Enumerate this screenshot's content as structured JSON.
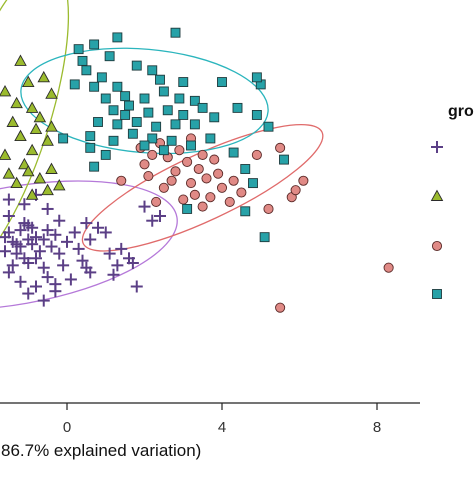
{
  "chart_data": {
    "type": "scatter",
    "title": "",
    "xlabel": "86.7% explained variation)",
    "ylabel": "",
    "xlim": [
      -1.7,
      9.2
    ],
    "ylim": [
      -4.8,
      8.3
    ],
    "x_ticks": [
      0,
      4,
      8
    ],
    "x_tick_labels": [
      "0",
      "4",
      "8"
    ],
    "grid": false,
    "legend": {
      "title": "gro",
      "placement": "right",
      "entries": [
        "",
        "",
        "",
        ""
      ]
    },
    "series": [
      {
        "marker": "plus",
        "color": "#5b3f86",
        "ellipse": {
          "center": [
            -1.3,
            -1.25
          ],
          "radii": [
            4.2,
            2.5
          ],
          "angle_deg": -10,
          "color": "#b579d9"
        },
        "points": [
          [
            -1.4,
            -1.1
          ],
          [
            -1.2,
            -1.3
          ],
          [
            -1.0,
            -1.0
          ],
          [
            -1.3,
            -1.6
          ],
          [
            -0.9,
            -1.2
          ],
          [
            -1.5,
            -0.7
          ],
          [
            -1.1,
            -1.8
          ],
          [
            -0.8,
            -0.9
          ],
          [
            -1.6,
            -1.5
          ],
          [
            -1.2,
            -0.6
          ],
          [
            -0.7,
            -1.5
          ],
          [
            -1.0,
            -2.0
          ],
          [
            -1.4,
            -2.1
          ],
          [
            -0.9,
            -0.5
          ],
          [
            -0.6,
            -1.0
          ],
          [
            -1.6,
            -0.9
          ],
          [
            -1.3,
            -1.2
          ],
          [
            -1.1,
            -0.3
          ],
          [
            -0.8,
            -1.8
          ],
          [
            -1.5,
            -2.4
          ],
          [
            -0.5,
            -0.6
          ],
          [
            -0.4,
            -1.3
          ],
          [
            -0.3,
            -0.8
          ],
          [
            -0.2,
            -1.6
          ],
          [
            -0.6,
            -2.2
          ],
          [
            -0.2,
            -0.2
          ],
          [
            0.0,
            -1.1
          ],
          [
            -0.1,
            -2.1
          ],
          [
            -0.5,
            -2.6
          ],
          [
            0.2,
            -0.7
          ],
          [
            0.3,
            -1.4
          ],
          [
            0.5,
            -0.3
          ],
          [
            0.6,
            -1.0
          ],
          [
            0.8,
            -0.5
          ],
          [
            0.4,
            -1.9
          ],
          [
            -0.3,
            -2.9
          ],
          [
            -0.8,
            -3.0
          ],
          [
            -1.2,
            -2.8
          ],
          [
            -1.0,
            -3.3
          ],
          [
            -0.6,
            -3.6
          ],
          [
            -0.3,
            -3.2
          ],
          [
            0.1,
            -2.7
          ],
          [
            0.6,
            -2.4
          ],
          [
            1.4,
            -1.4
          ],
          [
            1.1,
            -1.6
          ],
          [
            1.3,
            -2.1
          ],
          [
            1.7,
            -2.0
          ],
          [
            2.0,
            0.4
          ],
          [
            2.4,
            0.0
          ],
          [
            2.2,
            -0.2
          ],
          [
            1.6,
            -1.8
          ],
          [
            1.8,
            -3.0
          ],
          [
            1.2,
            -2.5
          ],
          [
            0.5,
            -2.2
          ],
          [
            -0.5,
            0.3
          ],
          [
            -1.1,
            0.5
          ],
          [
            -1.5,
            0.7
          ],
          [
            -0.8,
            0.9
          ],
          [
            -1.5,
            0.0
          ],
          [
            -1.0,
            -0.4
          ],
          [
            1.0,
            -0.7
          ]
        ]
      },
      {
        "marker": "triangle",
        "color": "#9bbb2e",
        "ellipse": {
          "center": [
            -1.7,
            4.0
          ],
          "radii": [
            4.2,
            2.0
          ],
          "angle_deg": -72,
          "color": "#9bbb2e"
        },
        "points": [
          [
            -1.6,
            5.3
          ],
          [
            -1.3,
            4.8
          ],
          [
            -1.0,
            5.7
          ],
          [
            -0.9,
            4.6
          ],
          [
            -0.6,
            5.9
          ],
          [
            -0.4,
            5.2
          ],
          [
            -0.7,
            4.2
          ],
          [
            -1.4,
            4.0
          ],
          [
            -1.2,
            3.4
          ],
          [
            -0.8,
            3.7
          ],
          [
            -0.5,
            3.2
          ],
          [
            -0.9,
            2.8
          ],
          [
            -1.1,
            2.2
          ],
          [
            -0.4,
            2.0
          ],
          [
            -0.7,
            1.6
          ],
          [
            -0.5,
            1.1
          ],
          [
            -0.9,
            0.9
          ],
          [
            -1.3,
            1.4
          ],
          [
            -1.6,
            2.6
          ],
          [
            -0.2,
            1.3
          ],
          [
            -1.5,
            1.8
          ],
          [
            -1.2,
            6.6
          ],
          [
            -0.4,
            3.8
          ],
          [
            -1.0,
            1.9
          ]
        ]
      },
      {
        "marker": "circle",
        "color": "#e08a86",
        "ellipse": {
          "center": [
            3.5,
            1.2
          ],
          "radii": [
            3.4,
            1.4
          ],
          "angle_deg": -25,
          "color": "#e06b6b"
        },
        "points": [
          [
            1.9,
            2.9
          ],
          [
            2.2,
            2.6
          ],
          [
            2.4,
            3.1
          ],
          [
            2.6,
            2.5
          ],
          [
            2.9,
            2.8
          ],
          [
            3.1,
            2.3
          ],
          [
            3.2,
            3.3
          ],
          [
            2.0,
            2.2
          ],
          [
            3.5,
            2.6
          ],
          [
            3.8,
            2.4
          ],
          [
            3.9,
            1.8
          ],
          [
            3.6,
            1.6
          ],
          [
            3.2,
            1.4
          ],
          [
            2.7,
            1.5
          ],
          [
            2.5,
            1.2
          ],
          [
            2.1,
            1.7
          ],
          [
            4.3,
            1.5
          ],
          [
            4.5,
            1.0
          ],
          [
            4.2,
            0.6
          ],
          [
            3.7,
            0.8
          ],
          [
            3.3,
            0.9
          ],
          [
            4.0,
            1.2
          ],
          [
            3.5,
            0.4
          ],
          [
            3.0,
            0.7
          ],
          [
            4.9,
            2.6
          ],
          [
            5.5,
            2.9
          ],
          [
            5.8,
            0.8
          ],
          [
            5.9,
            1.1
          ],
          [
            5.2,
            0.3
          ],
          [
            8.3,
            -2.2
          ],
          [
            5.5,
            -3.9
          ],
          [
            2.3,
            0.6
          ],
          [
            1.4,
            1.5
          ],
          [
            2.8,
            1.9
          ],
          [
            3.4,
            2.0
          ],
          [
            6.1,
            1.5
          ]
        ]
      },
      {
        "marker": "square",
        "color": "#27a2a8",
        "ellipse": {
          "center": [
            2.0,
            4.9
          ],
          "radii": [
            3.2,
            2.2
          ],
          "angle_deg": 5,
          "color": "#2bb5bd"
        },
        "points": [
          [
            0.7,
            7.3
          ],
          [
            1.3,
            7.6
          ],
          [
            2.8,
            7.8
          ],
          [
            0.3,
            7.1
          ],
          [
            0.4,
            6.6
          ],
          [
            0.5,
            6.2
          ],
          [
            1.1,
            6.8
          ],
          [
            2.2,
            6.2
          ],
          [
            0.2,
            5.6
          ],
          [
            0.9,
            5.9
          ],
          [
            0.7,
            5.5
          ],
          [
            1.3,
            5.5
          ],
          [
            3.0,
            5.7
          ],
          [
            4.0,
            5.7
          ],
          [
            5.0,
            5.6
          ],
          [
            4.9,
            5.9
          ],
          [
            1.0,
            5.0
          ],
          [
            1.5,
            5.1
          ],
          [
            2.0,
            5.0
          ],
          [
            2.5,
            5.3
          ],
          [
            2.9,
            5.0
          ],
          [
            3.3,
            4.9
          ],
          [
            1.2,
            4.5
          ],
          [
            1.6,
            4.7
          ],
          [
            2.1,
            4.4
          ],
          [
            2.6,
            4.5
          ],
          [
            3.0,
            4.3
          ],
          [
            3.5,
            4.6
          ],
          [
            0.8,
            4.0
          ],
          [
            1.3,
            3.9
          ],
          [
            1.8,
            4.0
          ],
          [
            2.3,
            3.8
          ],
          [
            2.8,
            3.9
          ],
          [
            3.3,
            3.9
          ],
          [
            0.6,
            3.4
          ],
          [
            1.2,
            3.2
          ],
          [
            1.7,
            3.5
          ],
          [
            2.2,
            3.3
          ],
          [
            2.7,
            3.2
          ],
          [
            3.2,
            3.0
          ],
          [
            3.7,
            3.3
          ],
          [
            0.6,
            2.9
          ],
          [
            1.0,
            2.6
          ],
          [
            2.0,
            3.0
          ],
          [
            0.7,
            2.1
          ],
          [
            4.3,
            2.7
          ],
          [
            4.6,
            2.0
          ],
          [
            4.8,
            1.4
          ],
          [
            3.1,
            0.3
          ],
          [
            4.6,
            0.2
          ],
          [
            5.1,
            -0.9
          ],
          [
            2.5,
            2.8
          ],
          [
            1.5,
            4.3
          ],
          [
            3.8,
            4.2
          ],
          [
            4.4,
            4.6
          ],
          [
            5.2,
            3.8
          ],
          [
            2.4,
            5.8
          ],
          [
            1.8,
            6.4
          ],
          [
            -0.1,
            3.3
          ],
          [
            4.9,
            4.3
          ],
          [
            5.6,
            2.4
          ]
        ]
      }
    ]
  }
}
